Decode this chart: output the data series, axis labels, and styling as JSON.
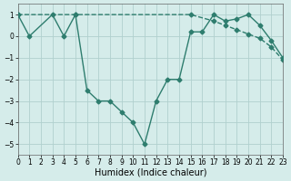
{
  "xlabel": "Humidex (Indice chaleur)",
  "line1": {
    "x": [
      0,
      1,
      3,
      4,
      5,
      6,
      7,
      8,
      9,
      10,
      11,
      12,
      13,
      14,
      15,
      16,
      17,
      18,
      19,
      20,
      21,
      22,
      23
    ],
    "y": [
      1,
      0,
      1,
      0,
      1,
      -2.5,
      -3,
      -3,
      -3.5,
      -4,
      -5,
      -3,
      -2,
      -2,
      0.2,
      0.2,
      1,
      0.7,
      0.8,
      1,
      0.5,
      -0.2,
      -1
    ],
    "color": "#2e7d6e",
    "linewidth": 1.0,
    "markersize": 2.5,
    "linestyle": "-"
  },
  "line2": {
    "x": [
      0,
      5,
      15,
      17,
      18,
      19,
      20,
      21,
      22,
      23
    ],
    "y": [
      1,
      1,
      1,
      0.7,
      0.5,
      0.3,
      0.1,
      -0.1,
      -0.5,
      -1.1
    ],
    "color": "#2e7d6e",
    "linewidth": 1.0,
    "markersize": 2.5,
    "linestyle": "--"
  },
  "xlim": [
    0,
    23
  ],
  "ylim": [
    -5.5,
    1.5
  ],
  "yticks": [
    -5,
    -4,
    -3,
    -2,
    -1,
    0,
    1
  ],
  "xticks": [
    0,
    1,
    2,
    3,
    4,
    5,
    6,
    7,
    8,
    9,
    10,
    11,
    12,
    13,
    14,
    15,
    16,
    17,
    18,
    19,
    20,
    21,
    22,
    23
  ],
  "background_color": "#d5ecea",
  "grid_color": "#b0d0ce",
  "tick_fontsize": 5.5,
  "label_fontsize": 7
}
